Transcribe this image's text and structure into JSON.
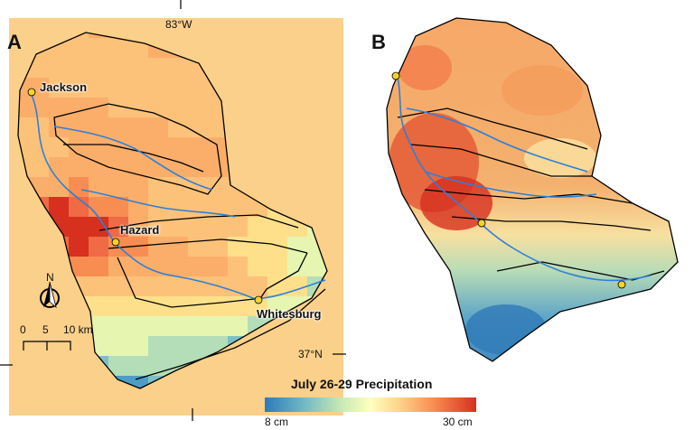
{
  "panels": [
    {
      "letter": "A"
    },
    {
      "letter": "B"
    }
  ],
  "cities": [
    {
      "name": "Jackson"
    },
    {
      "name": "Hazard"
    },
    {
      "name": "Whitesburg"
    }
  ],
  "graticule": {
    "longitude": "83°W",
    "latitude": "37°N"
  },
  "north_arrow": {
    "label": "N"
  },
  "scale_bar": {
    "ticks": [
      "0",
      "5",
      "10 km"
    ]
  },
  "legend": {
    "title": "July 26-29 Precipitation",
    "min_label": "8 cm",
    "max_label": "30 cm",
    "colors": [
      "#2b7bba",
      "#5aa9c7",
      "#9dd3be",
      "#e6f5b0",
      "#fee08b",
      "#fdae61",
      "#f46d43",
      "#d7301f"
    ]
  },
  "colors": {
    "river": "#2f7fd6",
    "boundary": "#000000",
    "city_marker": "#f5d327"
  }
}
